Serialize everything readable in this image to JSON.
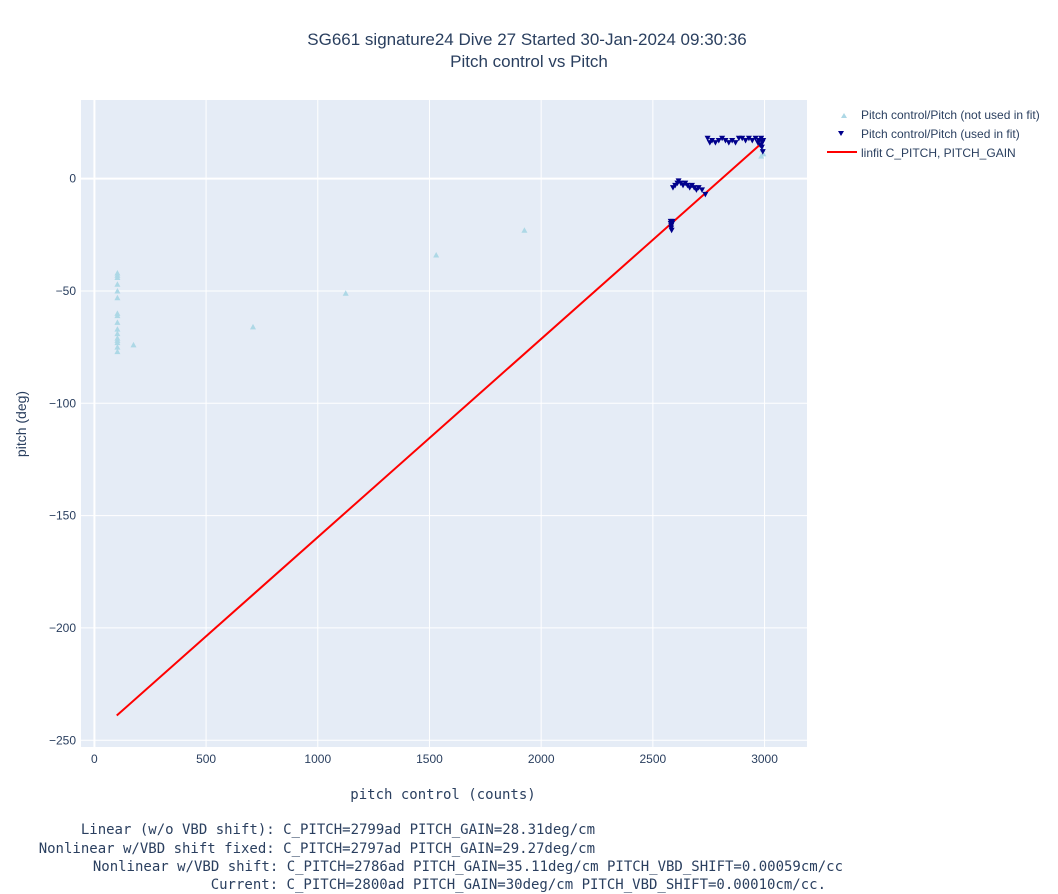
{
  "chart_data": {
    "type": "scatter",
    "title": "SG661 signature24 Dive 27 Started 30-Jan-2024 09:30:36",
    "subtitle": "Pitch control vs Pitch",
    "xlabel": "pitch control (counts)",
    "ylabel": "pitch (deg)",
    "xlim": [
      -60,
      3190
    ],
    "ylim": [
      -253,
      35
    ],
    "xticks": [
      0,
      500,
      1000,
      1500,
      2000,
      2500,
      3000
    ],
    "yticks": [
      -250,
      -200,
      -150,
      -100,
      -50,
      0
    ],
    "grid": true,
    "legend_position": "top-right-outside",
    "series": [
      {
        "name": "Pitch control/Pitch (not used in fit)",
        "marker": "triangle-up",
        "color": "#add8e6",
        "points": [
          [
            103,
            -42
          ],
          [
            103,
            -43
          ],
          [
            103,
            -44
          ],
          [
            103,
            -47
          ],
          [
            103,
            -50
          ],
          [
            103,
            -53
          ],
          [
            103,
            -60
          ],
          [
            103,
            -61
          ],
          [
            103,
            -64
          ],
          [
            103,
            -67
          ],
          [
            103,
            -69
          ],
          [
            103,
            -71
          ],
          [
            103,
            -72
          ],
          [
            103,
            -73
          ],
          [
            103,
            -75
          ],
          [
            103,
            -77
          ],
          [
            175,
            -74
          ],
          [
            710,
            -66
          ],
          [
            1125,
            -51
          ],
          [
            1530,
            -34
          ],
          [
            1925,
            -23
          ],
          [
            2985,
            10
          ],
          [
            2990,
            13
          ],
          [
            2995,
            11
          ]
        ]
      },
      {
        "name": "Pitch control/Pitch (used in fit)",
        "marker": "triangle-down",
        "color": "#00008b",
        "points": [
          [
            2580,
            -19
          ],
          [
            2580,
            -20
          ],
          [
            2582,
            -21
          ],
          [
            2582,
            -22
          ],
          [
            2584,
            -23
          ],
          [
            2586,
            -20
          ],
          [
            2588,
            -19
          ],
          [
            2590,
            -4
          ],
          [
            2600,
            -3
          ],
          [
            2610,
            -2
          ],
          [
            2615,
            -1
          ],
          [
            2625,
            -2
          ],
          [
            2635,
            -3
          ],
          [
            2645,
            -2
          ],
          [
            2655,
            -3
          ],
          [
            2665,
            -4
          ],
          [
            2675,
            -3
          ],
          [
            2685,
            -4
          ],
          [
            2695,
            -5
          ],
          [
            2705,
            -4
          ],
          [
            2720,
            -5
          ],
          [
            2735,
            -7
          ],
          [
            2745,
            18
          ],
          [
            2755,
            16
          ],
          [
            2765,
            17
          ],
          [
            2780,
            16
          ],
          [
            2795,
            17
          ],
          [
            2810,
            18
          ],
          [
            2825,
            17
          ],
          [
            2840,
            16
          ],
          [
            2855,
            17
          ],
          [
            2870,
            16
          ],
          [
            2885,
            18
          ],
          [
            2900,
            18
          ],
          [
            2915,
            17
          ],
          [
            2930,
            18
          ],
          [
            2945,
            17
          ],
          [
            2960,
            18
          ],
          [
            2970,
            16
          ],
          [
            2975,
            17
          ],
          [
            2980,
            15
          ],
          [
            2985,
            18
          ],
          [
            2988,
            14
          ],
          [
            2990,
            16
          ],
          [
            2992,
            12
          ],
          [
            2994,
            17
          ]
        ]
      },
      {
        "name": "linfit C_PITCH, PITCH_GAIN",
        "line": true,
        "color": "#ff0000",
        "points": [
          [
            100,
            -239
          ],
          [
            2990,
            16
          ]
        ]
      }
    ]
  },
  "notes": {
    "line1": "Linear (w/o VBD shift): C_PITCH=2799ad PITCH_GAIN=28.31deg/cm",
    "line2": "Nonlinear w/VBD shift fixed: C_PITCH=2797ad PITCH_GAIN=29.27deg/cm",
    "line3": "Nonlinear w/VBD shift: C_PITCH=2786ad PITCH_GAIN=35.11deg/cm PITCH_VBD_SHIFT=0.00059cm/cc",
    "line4": "Current: C_PITCH=2800ad PITCH_GAIN=30deg/cm PITCH_VBD_SHIFT=0.00010cm/cc."
  }
}
